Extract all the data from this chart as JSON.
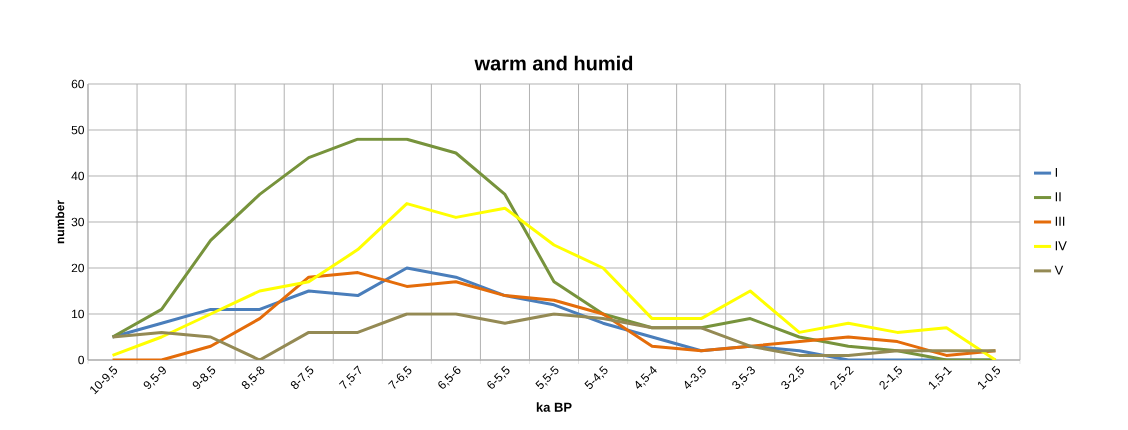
{
  "chart_data": {
    "type": "line",
    "title": "warm and humid",
    "xlabel": "ka BP",
    "ylabel": "number",
    "categories": [
      "10-9,5",
      "9,5-9",
      "9-8,5",
      "8,5-8",
      "8-7,5",
      "7,5-7",
      "7-6,5",
      "6,5-6",
      "6-5,5",
      "5,5-5",
      "5-4,5",
      "4,5-4",
      "4-3,5",
      "3,5-3",
      "3-2,5",
      "2,5-2",
      "2-1,5",
      "1,5-1",
      "1-0,5"
    ],
    "series": [
      {
        "name": "I",
        "color": "#4a7ebb",
        "values": [
          5,
          8,
          11,
          11,
          15,
          14,
          20,
          18,
          14,
          12,
          8,
          5,
          2,
          3,
          2,
          0,
          0,
          0,
          0
        ]
      },
      {
        "name": "II",
        "color": "#77933c",
        "values": [
          5,
          11,
          26,
          36,
          44,
          48,
          48,
          45,
          36,
          17,
          10,
          7,
          7,
          9,
          5,
          3,
          2,
          0,
          0
        ]
      },
      {
        "name": "III",
        "color": "#e46c0a",
        "values": [
          0,
          0,
          3,
          9,
          18,
          19,
          16,
          17,
          14,
          13,
          10,
          3,
          2,
          3,
          4,
          5,
          4,
          1,
          2
        ]
      },
      {
        "name": "IV",
        "color": "#ffff00",
        "values": [
          1,
          5,
          10,
          15,
          17,
          24,
          34,
          31,
          33,
          25,
          20,
          9,
          9,
          15,
          6,
          8,
          6,
          7,
          0
        ]
      },
      {
        "name": "V",
        "color": "#948a54",
        "values": [
          5,
          6,
          5,
          0,
          6,
          6,
          10,
          10,
          8,
          10,
          9,
          7,
          7,
          3,
          1,
          1,
          2,
          2,
          2
        ]
      }
    ],
    "ylim": [
      0,
      60
    ],
    "yticks": [
      0,
      10,
      20,
      30,
      40,
      50,
      60
    ],
    "grid": true,
    "legend": "right",
    "marker": "none"
  }
}
